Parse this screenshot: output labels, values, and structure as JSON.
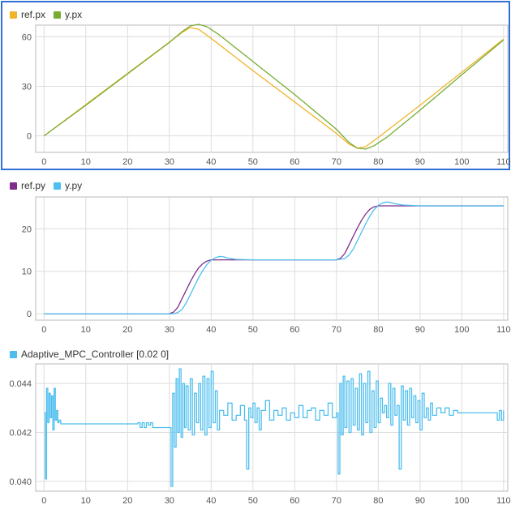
{
  "colors": {
    "ref_px": "#f0b429",
    "y_px": "#77ac30",
    "ref_py": "#7e2f8e",
    "y_py": "#4dbeee",
    "controller": "#4dbeee",
    "selection_border": "#2f6fd6",
    "grid": "#dcdcdc"
  },
  "chart_data": [
    {
      "type": "line",
      "title": "",
      "xlabel": "",
      "ylabel": "",
      "xlim": [
        -2,
        111
      ],
      "ylim": [
        -10,
        67
      ],
      "xticks": [
        0,
        10,
        20,
        30,
        40,
        50,
        60,
        70,
        80,
        90,
        100,
        110
      ],
      "yticks": [
        0,
        30,
        60
      ],
      "grid": true,
      "legend": "top-left",
      "selected": true,
      "series": [
        {
          "name": "ref.px",
          "color_key": "ref_px",
          "x": [
            0,
            10,
            20,
            30,
            33,
            35,
            37,
            40,
            50,
            60,
            70,
            73,
            75,
            77,
            80,
            90,
            100,
            110
          ],
          "y": [
            0,
            18.9,
            37.8,
            56.7,
            62.5,
            65.5,
            64.5,
            59,
            39.5,
            20.5,
            1.5,
            -5,
            -7.5,
            -6.5,
            -1,
            18.5,
            38.5,
            58.5
          ]
        },
        {
          "name": "y.px",
          "color_key": "y_px",
          "x": [
            0,
            10,
            20,
            30,
            33,
            35,
            37,
            39,
            42,
            50,
            60,
            70,
            73,
            75,
            77,
            79,
            82,
            90,
            100,
            110
          ],
          "y": [
            0,
            18.5,
            37.5,
            56.5,
            63,
            66.5,
            67.5,
            66,
            61,
            45,
            25,
            4,
            -4,
            -7.5,
            -8,
            -6,
            -1,
            15.5,
            37,
            58
          ]
        }
      ]
    },
    {
      "type": "line",
      "title": "",
      "xlabel": "",
      "ylabel": "",
      "xlim": [
        -2,
        111
      ],
      "ylim": [
        -1.5,
        27.5
      ],
      "xticks": [
        0,
        10,
        20,
        30,
        40,
        50,
        60,
        70,
        80,
        90,
        100,
        110
      ],
      "yticks": [
        0,
        10,
        20
      ],
      "grid": true,
      "legend": "top-left",
      "series": [
        {
          "name": "ref.py",
          "color_key": "ref_py",
          "x": [
            0,
            30,
            31,
            32,
            33,
            34,
            35,
            36,
            37,
            38,
            39,
            40,
            42,
            50,
            60,
            70,
            71,
            72,
            73,
            74,
            75,
            76,
            77,
            78,
            79,
            80,
            82,
            90,
            100,
            110
          ],
          "y": [
            0,
            0,
            0.4,
            1.5,
            3.5,
            5.5,
            7.5,
            9.3,
            10.8,
            11.8,
            12.4,
            12.7,
            12.7,
            12.7,
            12.7,
            12.7,
            13.1,
            14.2,
            16.2,
            18.2,
            20.2,
            22,
            23.5,
            24.6,
            25.2,
            25.4,
            25.4,
            25.4,
            25.4,
            25.4
          ]
        },
        {
          "name": "y.py",
          "color_key": "y_py",
          "x": [
            0,
            31,
            32,
            33,
            34,
            35,
            36,
            37,
            38,
            39,
            40,
            41,
            42,
            43,
            44,
            46,
            50,
            60,
            70,
            72,
            73,
            74,
            75,
            76,
            77,
            78,
            79,
            80,
            81,
            82,
            83,
            84,
            86,
            90,
            100,
            110
          ],
          "y": [
            0,
            0,
            0.3,
            1.0,
            2.5,
            4.5,
            6.5,
            8.5,
            10.2,
            11.6,
            12.6,
            13.2,
            13.5,
            13.4,
            13.1,
            12.8,
            12.7,
            12.7,
            12.7,
            13.0,
            13.8,
            15.2,
            17.2,
            19.2,
            21.2,
            23.0,
            24.5,
            25.5,
            26.1,
            26.3,
            26.2,
            25.9,
            25.6,
            25.4,
            25.4,
            25.4
          ]
        }
      ]
    },
    {
      "type": "line",
      "title": "",
      "xlabel": "",
      "ylabel": "",
      "xlim": [
        -2,
        111
      ],
      "ylim": [
        0.0396,
        0.0448
      ],
      "xticks": [
        0,
        10,
        20,
        30,
        40,
        50,
        60,
        70,
        80,
        90,
        100,
        110
      ],
      "yticks": [
        0.04,
        0.042,
        0.044
      ],
      "ytick_labels": [
        "0.040",
        "0.042",
        "0.044"
      ],
      "grid": true,
      "legend": "top-left",
      "series": [
        {
          "name": "Adaptive_MPC_Controller [0.02 0]",
          "color_key": "controller",
          "x": [
            0,
            0.3,
            0.6,
            0.9,
            1.2,
            1.5,
            1.8,
            2.1,
            2.4,
            2.7,
            3.0,
            3.3,
            3.6,
            4,
            8,
            15,
            22,
            22.5,
            23,
            23.5,
            24,
            24.5,
            25,
            25.5,
            26,
            30,
            30.4,
            30.8,
            31.2,
            31.6,
            32,
            32.4,
            32.8,
            33.2,
            33.6,
            34,
            34.5,
            35,
            35.5,
            36,
            36.5,
            37,
            37.5,
            38,
            38.5,
            39,
            39.5,
            40,
            40.5,
            41,
            41.5,
            42,
            43,
            44,
            45,
            46,
            47,
            48,
            48.5,
            49,
            49.5,
            50,
            50.5,
            51,
            51.5,
            52,
            53,
            54,
            55,
            56,
            57,
            58,
            59,
            60,
            61,
            62,
            63,
            64,
            65,
            66,
            67,
            68,
            69,
            70,
            70.4,
            70.8,
            71.2,
            71.6,
            72,
            72.5,
            73,
            73.5,
            74,
            74.5,
            75,
            75.5,
            76,
            76.5,
            77,
            77.5,
            78,
            78.5,
            79,
            79.5,
            80,
            80.5,
            81,
            81.5,
            82,
            82.5,
            83,
            83.5,
            84,
            84.5,
            85,
            85.5,
            86,
            86.5,
            87,
            87.5,
            88,
            88.5,
            89,
            89.5,
            90,
            90.5,
            91,
            91.5,
            92,
            92.5,
            93,
            94,
            95,
            96,
            97,
            98,
            99,
            100,
            105,
            108,
            108.5,
            109,
            109.5,
            110
          ],
          "y": [
            0.0428,
            0.0401,
            0.0438,
            0.0424,
            0.0436,
            0.0426,
            0.0435,
            0.0421,
            0.0438,
            0.0425,
            0.0429,
            0.0424,
            0.0425,
            0.04235,
            0.04235,
            0.04235,
            0.04235,
            0.0424,
            0.0422,
            0.0424,
            0.0422,
            0.0424,
            0.0423,
            0.0424,
            0.0422,
            0.0422,
            0.0398,
            0.0436,
            0.0414,
            0.0442,
            0.042,
            0.0446,
            0.0418,
            0.044,
            0.0422,
            0.0439,
            0.0421,
            0.0442,
            0.0419,
            0.0436,
            0.0424,
            0.044,
            0.0421,
            0.0443,
            0.0419,
            0.0442,
            0.0422,
            0.0445,
            0.0424,
            0.0437,
            0.0421,
            0.0429,
            0.0427,
            0.0432,
            0.0425,
            0.0427,
            0.0431,
            0.0425,
            0.0405,
            0.043,
            0.0426,
            0.0432,
            0.0424,
            0.043,
            0.0421,
            0.0429,
            0.0433,
            0.0425,
            0.0429,
            0.0427,
            0.043,
            0.0425,
            0.0428,
            0.0426,
            0.0431,
            0.0426,
            0.0429,
            0.043,
            0.0425,
            0.0429,
            0.0427,
            0.0432,
            0.0426,
            0.0428,
            0.0403,
            0.044,
            0.0419,
            0.0443,
            0.0422,
            0.0441,
            0.042,
            0.0442,
            0.0423,
            0.0438,
            0.0421,
            0.0444,
            0.0419,
            0.044,
            0.0424,
            0.0445,
            0.042,
            0.0437,
            0.0422,
            0.0441,
            0.0424,
            0.0434,
            0.0428,
            0.0431,
            0.0426,
            0.044,
            0.0423,
            0.0438,
            0.0427,
            0.0431,
            0.0405,
            0.0439,
            0.0425,
            0.0437,
            0.0423,
            0.0438,
            0.0426,
            0.0435,
            0.0424,
            0.0433,
            0.0421,
            0.0436,
            0.0426,
            0.043,
            0.0425,
            0.0432,
            0.0427,
            0.043,
            0.0428,
            0.043,
            0.0427,
            0.0429,
            0.0428,
            0.0428,
            0.0428,
            0.0428,
            0.0425,
            0.0429,
            0.0425,
            0.0429
          ]
        }
      ]
    }
  ]
}
